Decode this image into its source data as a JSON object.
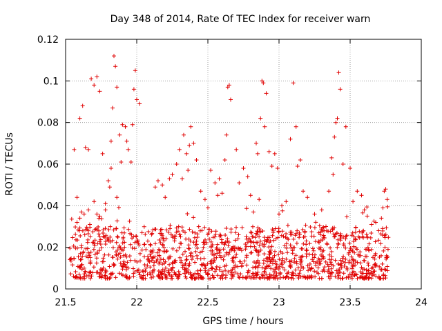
{
  "chart_data": {
    "type": "scatter",
    "title": "Day 348 of 2014, Rate Of TEC Index for receiver warn",
    "xlabel": "GPS time / hours",
    "ylabel": "ROTI / TECUs",
    "xlim": [
      21.5,
      24
    ],
    "ylim": [
      0,
      0.12
    ],
    "grid": true,
    "marker": "+",
    "color": "#e00000",
    "x_ticks": [
      "21.5",
      "22",
      "22.5",
      "23",
      "23.5",
      "24"
    ],
    "y_ticks": [
      "0",
      "0.02",
      "0.04",
      "0.06",
      "0.08",
      "0.1",
      "0.12"
    ],
    "x_range_data": [
      21.53,
      23.77
    ],
    "baseline_band": [
      0.005,
      0.03
    ],
    "series": [
      {
        "name": "ROTI",
        "x": [
          21.56,
          21.58,
          21.6,
          21.62,
          21.64,
          21.66,
          21.68,
          21.7,
          21.72,
          21.74,
          21.76,
          21.78,
          21.6,
          21.61,
          21.58,
          21.63,
          21.66,
          21.67,
          21.7,
          21.72,
          21.74,
          21.78,
          21.8,
          21.82,
          21.83,
          21.84,
          21.85,
          21.86,
          21.82,
          21.81,
          21.88,
          21.9,
          21.92,
          21.94,
          21.96,
          21.98,
          21.99,
          22.0,
          22.02,
          21.86,
          21.89,
          21.93,
          21.97,
          22.13,
          22.15,
          22.18,
          22.2,
          22.23,
          22.25,
          22.28,
          22.3,
          22.33,
          22.35,
          22.37,
          22.38,
          22.4,
          22.42,
          22.36,
          22.32,
          22.45,
          22.48,
          22.5,
          22.52,
          22.55,
          22.57,
          22.6,
          22.62,
          22.64,
          22.65,
          22.66,
          22.63,
          22.58,
          22.7,
          22.72,
          22.75,
          22.78,
          22.8,
          22.82,
          22.85,
          22.87,
          22.88,
          22.89,
          22.9,
          22.91,
          22.86,
          22.84,
          22.93,
          22.95,
          22.97,
          22.99,
          23.0,
          23.02,
          23.05,
          23.08,
          23.1,
          23.12,
          23.13,
          23.15,
          23.17,
          23.2,
          23.25,
          23.28,
          23.3,
          23.33,
          23.35,
          23.37,
          23.38,
          23.39,
          23.4,
          23.41,
          23.42,
          23.43,
          23.45,
          23.47,
          23.5,
          23.52,
          23.55,
          23.58,
          23.6,
          23.62,
          23.65,
          23.68,
          23.7,
          23.72,
          23.73,
          23.74,
          23.75,
          23.76
        ],
        "y": [
          0.067,
          0.044,
          0.082,
          0.088,
          0.068,
          0.067,
          0.101,
          0.098,
          0.102,
          0.095,
          0.065,
          0.041,
          0.034,
          0.037,
          0.032,
          0.036,
          0.038,
          0.031,
          0.042,
          0.036,
          0.035,
          0.038,
          0.052,
          0.071,
          0.087,
          0.112,
          0.107,
          0.097,
          0.058,
          0.049,
          0.074,
          0.079,
          0.078,
          0.067,
          0.061,
          0.096,
          0.105,
          0.091,
          0.089,
          0.044,
          0.061,
          0.071,
          0.079,
          0.049,
          0.052,
          0.05,
          0.044,
          0.053,
          0.055,
          0.06,
          0.067,
          0.074,
          0.065,
          0.069,
          0.078,
          0.07,
          0.062,
          0.057,
          0.053,
          0.047,
          0.043,
          0.039,
          0.057,
          0.051,
          0.045,
          0.046,
          0.062,
          0.097,
          0.098,
          0.091,
          0.074,
          0.053,
          0.067,
          0.051,
          0.058,
          0.054,
          0.045,
          0.037,
          0.065,
          0.082,
          0.1,
          0.099,
          0.078,
          0.094,
          0.043,
          0.07,
          0.066,
          0.059,
          0.065,
          0.058,
          0.036,
          0.04,
          0.042,
          0.072,
          0.099,
          0.078,
          0.059,
          0.062,
          0.047,
          0.044,
          0.036,
          0.027,
          0.038,
          0.03,
          0.047,
          0.063,
          0.055,
          0.073,
          0.08,
          0.082,
          0.104,
          0.096,
          0.06,
          0.078,
          0.058,
          0.042,
          0.047,
          0.045,
          0.038,
          0.035,
          0.031,
          0.032,
          0.028,
          0.034,
          0.039,
          0.047,
          0.048,
          0.043
        ]
      }
    ]
  }
}
